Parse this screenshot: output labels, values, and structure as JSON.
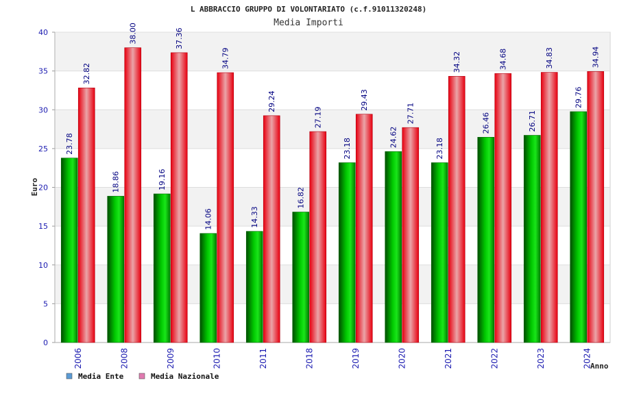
{
  "chart_data": {
    "type": "bar",
    "title": "L ABBRACCIO GRUPPO DI VOLONTARIATO (c.f.91011320248)",
    "subtitle": "Media Importi",
    "xlabel": "Anno",
    "ylabel": "Euro",
    "ylim": [
      0,
      40
    ],
    "yticks": [
      "0",
      "5",
      "10",
      "15",
      "20",
      "25",
      "30",
      "35",
      "40"
    ],
    "grid": true,
    "legend_position": "bottom-left",
    "categories": [
      "2006",
      "2008",
      "2009",
      "2010",
      "2011",
      "2018",
      "2019",
      "2020",
      "2021",
      "2022",
      "2023",
      "2024"
    ],
    "series": [
      {
        "name": "Media Ente",
        "color": "#00b000",
        "legend_color": "#5b9bd5",
        "values": [
          23.78,
          18.86,
          19.16,
          14.06,
          14.33,
          16.82,
          23.18,
          24.62,
          23.18,
          26.46,
          26.71,
          29.76
        ],
        "labels": [
          "23.78",
          "18.86",
          "19.16",
          "14.06",
          "14.33",
          "16.82",
          "23.18",
          "24.62",
          "23.18",
          "26.46",
          "26.71",
          "29.76"
        ]
      },
      {
        "name": "Media Nazionale",
        "color": "#e8101c",
        "legend_color": "#e07ab0",
        "values": [
          32.82,
          38.0,
          37.36,
          34.79,
          29.24,
          27.19,
          29.43,
          27.71,
          34.32,
          34.68,
          34.83,
          34.94
        ],
        "labels": [
          "32.82",
          "38.00",
          "37.36",
          "34.79",
          "29.24",
          "27.19",
          "29.43",
          "27.71",
          "34.32",
          "34.68",
          "34.83",
          "34.94"
        ]
      }
    ]
  }
}
